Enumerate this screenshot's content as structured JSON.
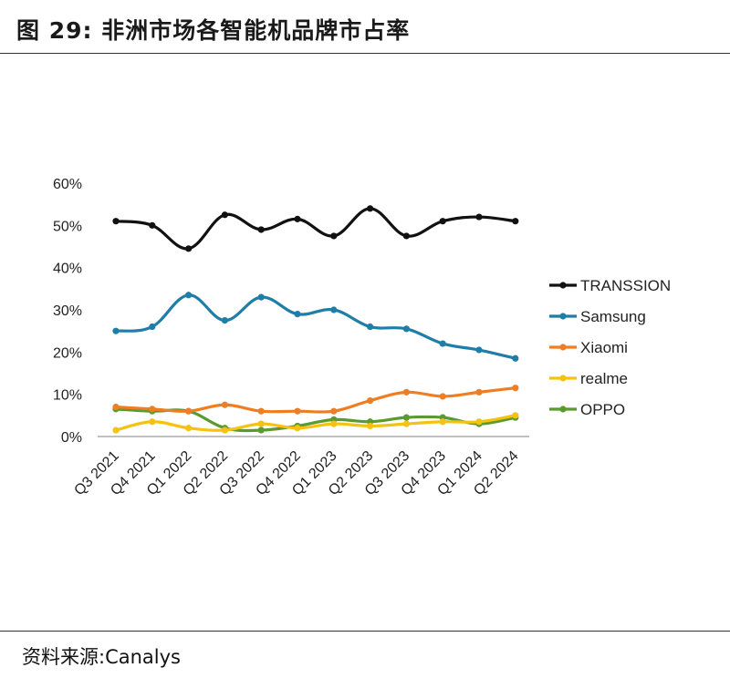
{
  "header": {
    "title": "图 29:  非洲市场各智能机品牌市占率"
  },
  "footer": {
    "source": "资料来源:Canalys"
  },
  "chart_data": {
    "type": "line",
    "categories": [
      "Q3 2021",
      "Q4 2021",
      "Q1 2022",
      "Q2 2022",
      "Q3 2022",
      "Q4 2022",
      "Q1 2023",
      "Q2 2023",
      "Q3 2023",
      "Q4 2023",
      "Q1 2024",
      "Q2 2024"
    ],
    "y_ticks": [
      "0%",
      "10%",
      "20%",
      "30%",
      "40%",
      "50%",
      "60%"
    ],
    "ylim": [
      0,
      60
    ],
    "legend_position": "right",
    "series": [
      {
        "name": "TRANSSION",
        "color": "#111111",
        "values": [
          51,
          50,
          44.5,
          52.5,
          49,
          51.5,
          47.5,
          54,
          47.5,
          51,
          52,
          51
        ]
      },
      {
        "name": "Samsung",
        "color": "#1f7ea8",
        "values": [
          25,
          26,
          33.5,
          27.5,
          33,
          29,
          30,
          26,
          25.5,
          22,
          20.5,
          18.5
        ]
      },
      {
        "name": "Xiaomi",
        "color": "#ef7d22",
        "values": [
          7,
          6.5,
          6,
          7.5,
          6,
          6,
          6,
          8.5,
          10.5,
          9.5,
          10.5,
          11.5
        ]
      },
      {
        "name": "realme",
        "color": "#f5c211",
        "values": [
          1.5,
          3.5,
          2,
          1.5,
          3,
          2,
          3,
          2.5,
          3,
          3.5,
          3.5,
          5
        ]
      },
      {
        "name": "OPPO",
        "color": "#5a9a2e",
        "values": [
          6.5,
          6,
          6,
          2,
          1.5,
          2.5,
          4,
          3.5,
          4.5,
          4.5,
          3,
          4.5
        ]
      }
    ]
  }
}
